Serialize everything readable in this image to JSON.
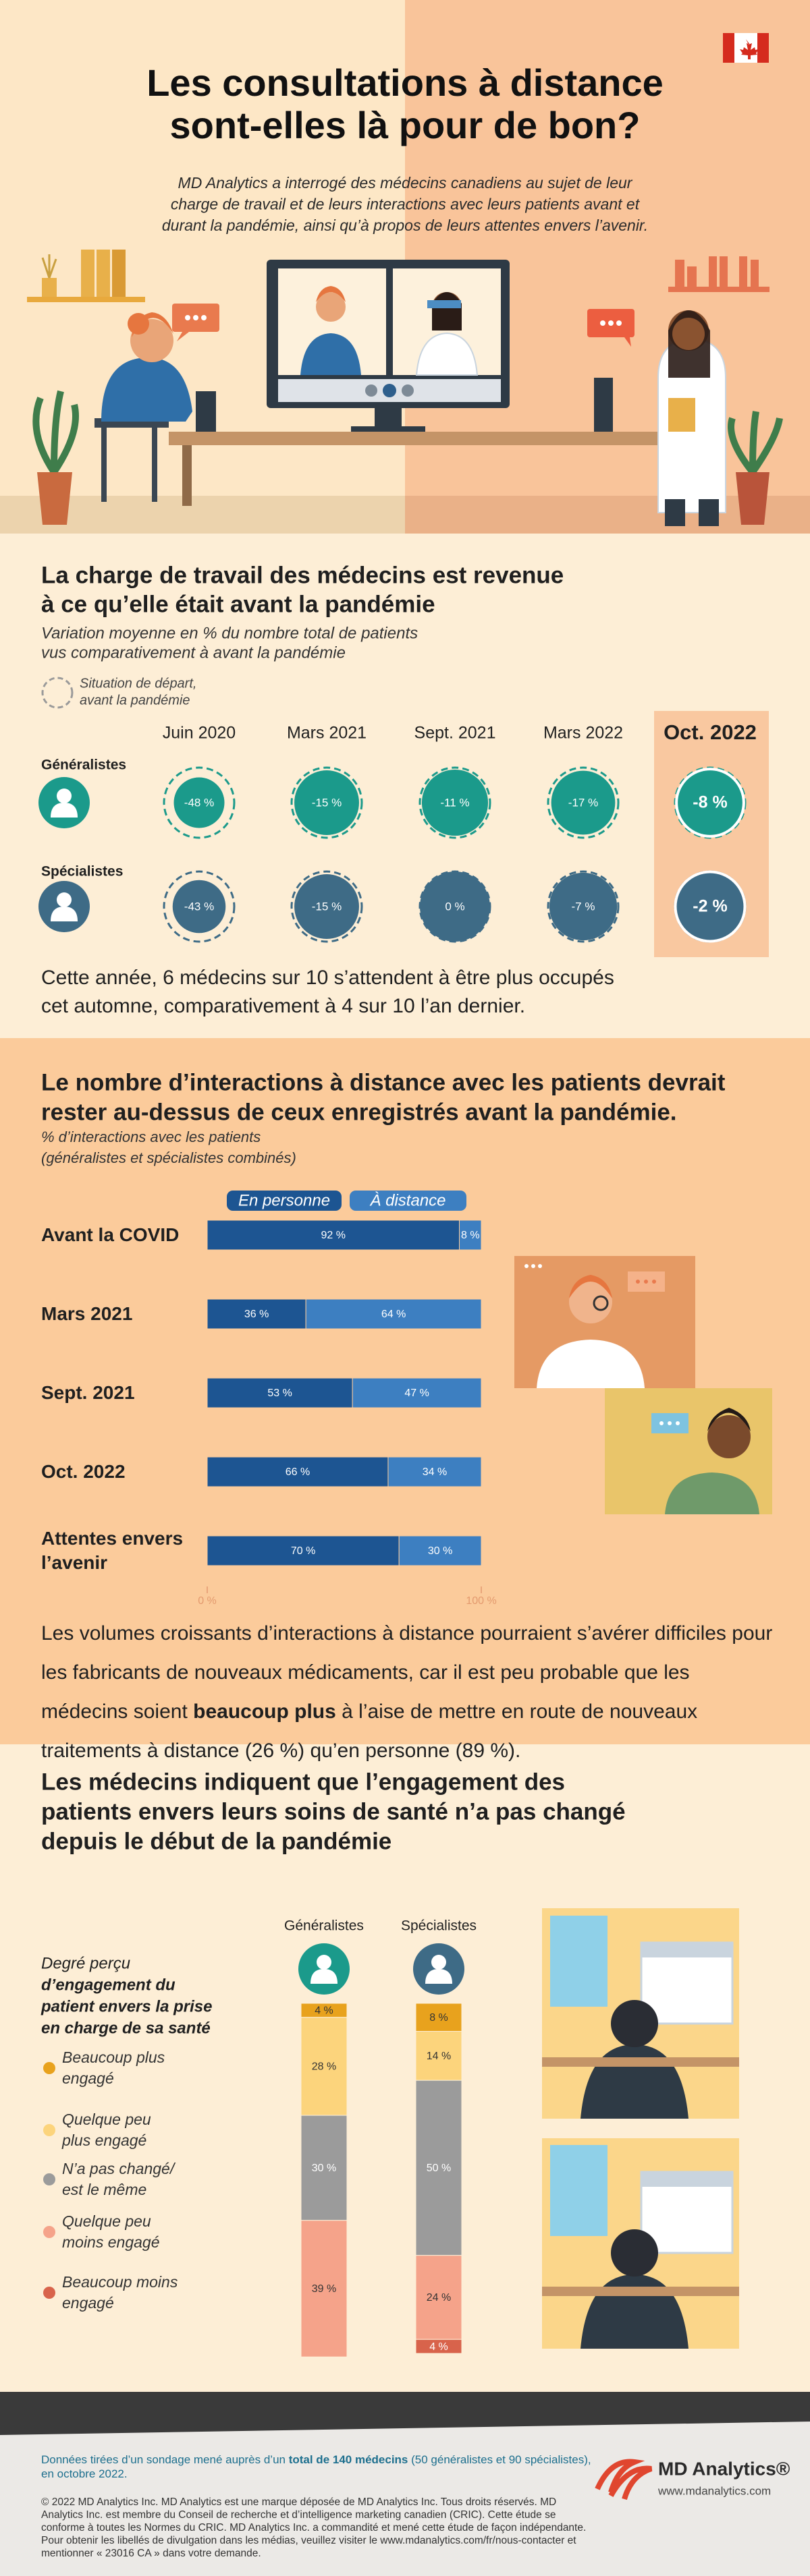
{
  "header": {
    "title_lines": [
      "Les consultations à distance",
      "sont-elles là pour de bon?"
    ],
    "intro_lines": [
      "MD Analytics a interrogé des médecins canadiens au sujet de leur",
      "charge de travail et de leurs interactions avec leurs patients avant et",
      "durant la pandémie, ainsi qu’à propos de leurs attentes envers l’avenir."
    ]
  },
  "workload": {
    "title_lines": [
      "La charge de travail des médecins est revenue",
      "à ce qu’elle était avant la pandémie"
    ],
    "subtitle_lines": [
      "Variation moyenne en % du nombre total de patients",
      "vus comparativement à avant la pandémie"
    ],
    "baseline_lines": [
      "Situation de départ,",
      "avant la pandémie"
    ],
    "columns": [
      "Juin 2020",
      "Mars 2021",
      "Sept. 2021",
      "Mars 2022",
      "Oct. 2022"
    ],
    "rows": [
      {
        "name": "Généralistes",
        "color": "#1b9a8b",
        "values": [
          -48,
          -15,
          -11,
          -17,
          -8
        ],
        "value_labels": [
          "-48 %",
          "-15 %",
          "-11 %",
          "-17 %",
          "-8 %"
        ]
      },
      {
        "name": "Spécialistes",
        "color": "#3e6b86",
        "values": [
          -43,
          -15,
          0,
          -7,
          -2
        ],
        "value_labels": [
          "-43 %",
          "-15 %",
          "0 %",
          "-7 %",
          "-2 %"
        ]
      }
    ],
    "note_lines": [
      "Cette année, 6 médecins sur 10 s’attendent à être plus occupés",
      "cet automne, comparativement à 4 sur 10 l’an dernier."
    ]
  },
  "interactions": {
    "title_lines": [
      "Le nombre d’interactions à distance avec les patients devrait",
      "rester au-dessus de ceux enregistrés avant la pandémie."
    ],
    "subtitle_lines": [
      "% d’interactions avec les patients",
      "(généralistes et spécialistes combinés)"
    ],
    "chart_data": {
      "type": "bar",
      "orientation": "horizontal",
      "stacked": true,
      "categories": [
        "Avant la COVID",
        "Mars 2021",
        "Sept. 2021",
        "Oct. 2022",
        "Attentes envers l’avenir"
      ],
      "series": [
        {
          "name": "En personne",
          "color": "#1d5592",
          "values": [
            92,
            36,
            53,
            66,
            70
          ],
          "value_labels": [
            "92 %",
            "36 %",
            "53 %",
            "66 %",
            "70 %"
          ]
        },
        {
          "name": "À distance",
          "color": "#3d7fc1",
          "values": [
            8,
            64,
            47,
            34,
            30
          ],
          "value_labels": [
            "8 %",
            "64 %",
            "47 %",
            "34 %",
            "30 %"
          ]
        }
      ],
      "xlim": [
        0,
        100
      ],
      "xticks": [
        {
          "value": 0,
          "label": "0 %"
        },
        {
          "value": 100,
          "label": "100 %"
        }
      ]
    },
    "note_parts": [
      "Les volumes croissants d’interactions à distance pourraient s’avérer difficiles pour les fabricants de nouveaux médicaments, car il est peu probable que les médecins soient ",
      "beaucoup plus",
      " à l’aise de mettre en route de nouveaux traitements à distance (26 %) qu’en personne (89 %)."
    ]
  },
  "engagement": {
    "title_lines": [
      "Les médecins indiquent que l’engagement des",
      "patients envers leurs soins de santé n’a pas changé",
      "depuis le début de la pandémie"
    ],
    "subtitle_lines": [
      "Degré perçu",
      "d’engagement du",
      "patient envers la prise",
      "en charge de sa santé"
    ],
    "chart_data": {
      "type": "bar",
      "orientation": "vertical",
      "stacked": true,
      "categories": [
        "Généralistes",
        "Spécialistes"
      ],
      "category_colors": [
        "#1b9a8b",
        "#3e6b86"
      ],
      "series": [
        {
          "name": "Beaucoup plus engagé",
          "color": "#e8a21d",
          "values": [
            4,
            8
          ],
          "value_labels": [
            "4 %",
            "8 %"
          ]
        },
        {
          "name": "Quelque peu plus engagé",
          "color": "#fcd47c",
          "values": [
            28,
            14
          ],
          "value_labels": [
            "28 %",
            "14 %"
          ]
        },
        {
          "name": "N’a pas changé/ est le même",
          "color": "#9b9b9b",
          "values": [
            30,
            50
          ],
          "value_labels": [
            "30 %",
            "50 %"
          ]
        },
        {
          "name": "Quelque peu moins engagé",
          "color": "#f5a38a",
          "values": [
            39,
            24
          ],
          "value_labels": [
            "39 %",
            "24 %"
          ]
        },
        {
          "name": "Beaucoup moins engagé",
          "color": "#d8634b",
          "values": [
            null,
            4
          ],
          "value_labels": [
            null,
            "4 %"
          ]
        }
      ],
      "ylim": [
        0,
        100
      ]
    }
  },
  "footer": {
    "source_parts": [
      "Données tirées d’un sondage mené auprès d’un ",
      "total de 140 médecins",
      " (50 généralistes et 90 spécialistes), en octobre 2022."
    ],
    "copyright": "© 2022 MD Analytics Inc. MD Analytics est une marque déposée de MD Analytics Inc. Tous droits réservés. MD Analytics Inc. est membre du Conseil de recherche et d’intelligence marketing canadien (CRIC). Cette étude se conforme à toutes les Normes du CRIC. MD Analytics Inc. a commandité et mené cette étude de façon indépendante. Pour obtenir les libellés de divulgation dans les médias, veuillez visiter le www.mdanalytics.com/fr/nous-contacter et mentionner « 23016 CA » dans votre demande.",
    "brand": "MD Analytics®",
    "url": "www.mdanalytics.com"
  }
}
